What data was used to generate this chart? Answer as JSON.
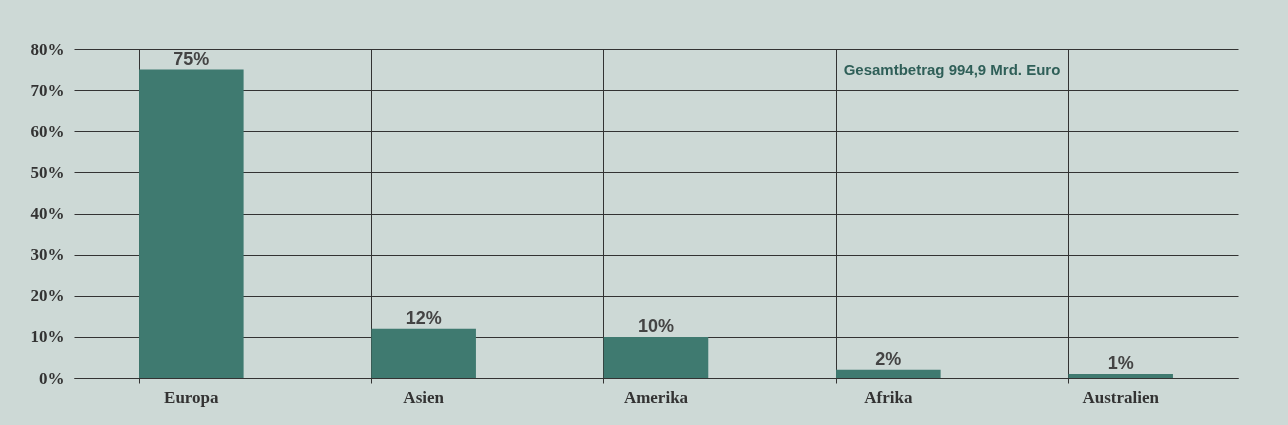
{
  "chart_data": {
    "type": "bar",
    "categories": [
      "Europa",
      "Asien",
      "Amerika",
      "Afrika",
      "Australien"
    ],
    "values": [
      75,
      12,
      10,
      2,
      1
    ],
    "value_labels": [
      "75%",
      "12%",
      "10%",
      "2%",
      "1%"
    ],
    "color": "#3f7a70",
    "ylim": [
      0,
      80
    ],
    "yticks": [
      {
        "value": 0,
        "label": "0%"
      },
      {
        "value": 10,
        "label": "10%"
      },
      {
        "value": 20,
        "label": "20%"
      },
      {
        "value": 30,
        "label": "30%"
      },
      {
        "value": 40,
        "label": "40%"
      },
      {
        "value": 50,
        "label": "50%"
      },
      {
        "value": 60,
        "label": "60%"
      },
      {
        "value": 70,
        "label": "70%"
      },
      {
        "value": 80,
        "label": "80%"
      }
    ],
    "annotations": [
      "Gesamtbetrag 994,9 Mrd. Euro"
    ],
    "grid": true
  }
}
